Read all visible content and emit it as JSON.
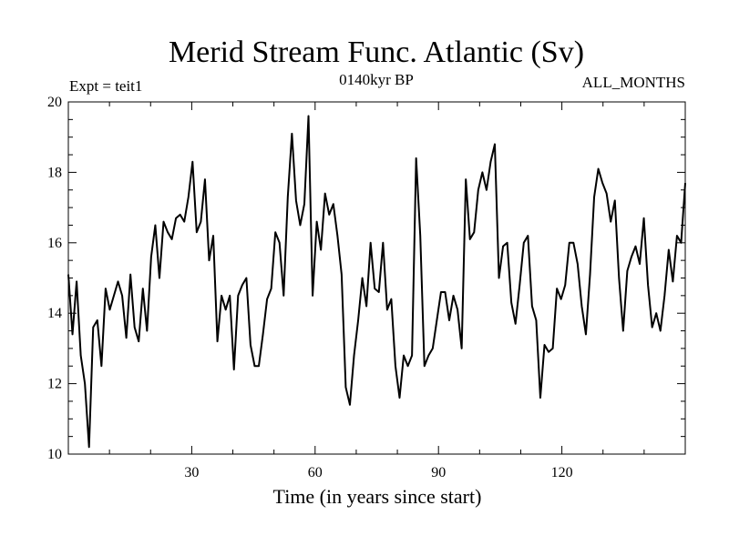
{
  "chart_data": {
    "type": "line",
    "title": "Merid Stream Func. Atlantic (Sv)",
    "subtitle": "0140kyr BP",
    "left_label": "Expt = teit1",
    "right_label": "ALL_MONTHS",
    "xlabel": "Time (in years since start)",
    "ylabel": "",
    "xlim": [
      0,
      150
    ],
    "ylim": [
      10,
      20
    ],
    "x_ticks": [
      30,
      60,
      90,
      120
    ],
    "y_ticks": [
      10,
      12,
      14,
      16,
      18,
      20
    ],
    "grid": false,
    "series": [
      {
        "name": "Merid Stream Func. Atlantic",
        "color": "#000000",
        "values": [
          15.1,
          13.4,
          14.9,
          12.8,
          12.0,
          10.2,
          13.6,
          13.8,
          12.5,
          14.7,
          14.1,
          14.5,
          14.9,
          14.5,
          13.3,
          15.1,
          13.6,
          13.2,
          14.7,
          13.5,
          15.6,
          16.5,
          15.0,
          16.6,
          16.3,
          16.1,
          16.7,
          16.8,
          16.6,
          17.3,
          18.3,
          16.3,
          16.6,
          17.8,
          15.5,
          16.2,
          13.2,
          14.5,
          14.1,
          14.5,
          12.4,
          14.5,
          14.8,
          15.0,
          13.1,
          12.5,
          12.5,
          13.4,
          14.4,
          14.7,
          16.3,
          16.0,
          14.5,
          17.3,
          19.1,
          17.2,
          16.5,
          17.1,
          19.6,
          14.5,
          16.6,
          15.8,
          17.4,
          16.8,
          17.1,
          16.2,
          15.1,
          11.9,
          11.4,
          12.8,
          13.8,
          15.0,
          14.2,
          16.0,
          14.7,
          14.6,
          16.0,
          14.1,
          14.4,
          12.5,
          11.6,
          12.8,
          12.5,
          12.8,
          18.4,
          16.2,
          12.5,
          12.8,
          13.0,
          13.8,
          14.6,
          14.6,
          13.8,
          14.5,
          14.1,
          13.0,
          17.8,
          16.1,
          16.3,
          17.5,
          18.0,
          17.5,
          18.3,
          18.8,
          15.0,
          15.9,
          16.0,
          14.3,
          13.7,
          14.8,
          16.0,
          16.2,
          14.2,
          13.8,
          11.6,
          13.1,
          12.9,
          13.0,
          14.7,
          14.4,
          14.8,
          16.0,
          16.0,
          15.4,
          14.2,
          13.4,
          15.1,
          17.3,
          18.1,
          17.7,
          17.4,
          16.6,
          17.2,
          15.0,
          13.5,
          15.2,
          15.6,
          15.9,
          15.4,
          16.7,
          14.8,
          13.6,
          14.0,
          13.5,
          14.5,
          15.8,
          14.9,
          16.2,
          16.0,
          17.7
        ]
      }
    ]
  }
}
